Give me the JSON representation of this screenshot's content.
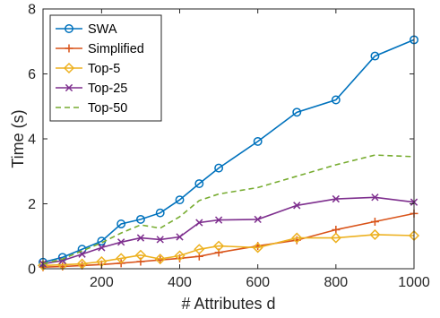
{
  "chart_data": {
    "type": "line",
    "title": "",
    "xlabel": "# Attributes d",
    "ylabel": "Time (s)",
    "xlim": [
      50,
      1000
    ],
    "ylim": [
      0,
      8
    ],
    "xticks": [
      200,
      400,
      600,
      800,
      1000
    ],
    "yticks": [
      0,
      2,
      4,
      6,
      8
    ],
    "grid": false,
    "legend_position": "top-left",
    "series": [
      {
        "name": "SWA",
        "color": "#0072BD",
        "marker": "circle",
        "line": "solid",
        "x": [
          50,
          100,
          150,
          200,
          250,
          300,
          350,
          400,
          450,
          500,
          600,
          700,
          800,
          900,
          1000
        ],
        "y": [
          0.2,
          0.35,
          0.6,
          0.85,
          1.38,
          1.52,
          1.72,
          2.12,
          2.62,
          3.1,
          3.92,
          4.82,
          5.2,
          6.55,
          7.05
        ]
      },
      {
        "name": "Simplified",
        "color": "#D95319",
        "marker": "plus",
        "line": "solid",
        "x": [
          50,
          100,
          150,
          200,
          250,
          300,
          350,
          400,
          450,
          500,
          600,
          700,
          800,
          900,
          1000
        ],
        "y": [
          0.05,
          0.07,
          0.1,
          0.13,
          0.17,
          0.22,
          0.27,
          0.32,
          0.38,
          0.5,
          0.7,
          0.88,
          1.2,
          1.45,
          1.7
        ]
      },
      {
        "name": "Top-5",
        "color": "#EDB120",
        "marker": "diamond",
        "line": "solid",
        "x": [
          50,
          100,
          150,
          200,
          250,
          300,
          350,
          400,
          450,
          500,
          600,
          700,
          800,
          900,
          1000
        ],
        "y": [
          0.1,
          0.12,
          0.15,
          0.22,
          0.32,
          0.42,
          0.3,
          0.4,
          0.6,
          0.7,
          0.65,
          0.95,
          0.95,
          1.05,
          1.02
        ]
      },
      {
        "name": "Top-25",
        "color": "#7E2F8E",
        "marker": "x",
        "line": "solid",
        "x": [
          50,
          100,
          150,
          200,
          250,
          300,
          350,
          400,
          450,
          500,
          600,
          700,
          800,
          900,
          1000
        ],
        "y": [
          0.15,
          0.25,
          0.45,
          0.65,
          0.82,
          0.95,
          0.9,
          0.98,
          1.42,
          1.5,
          1.52,
          1.95,
          2.15,
          2.2,
          2.05
        ]
      },
      {
        "name": "Top-50",
        "color": "#77AC30",
        "marker": "none",
        "line": "dashed",
        "x": [
          50,
          100,
          150,
          200,
          250,
          300,
          350,
          400,
          450,
          500,
          600,
          700,
          800,
          900,
          1000
        ],
        "y": [
          0.15,
          0.3,
          0.55,
          0.8,
          1.1,
          1.35,
          1.25,
          1.6,
          2.1,
          2.3,
          2.5,
          2.85,
          3.2,
          3.5,
          3.45
        ]
      }
    ]
  }
}
